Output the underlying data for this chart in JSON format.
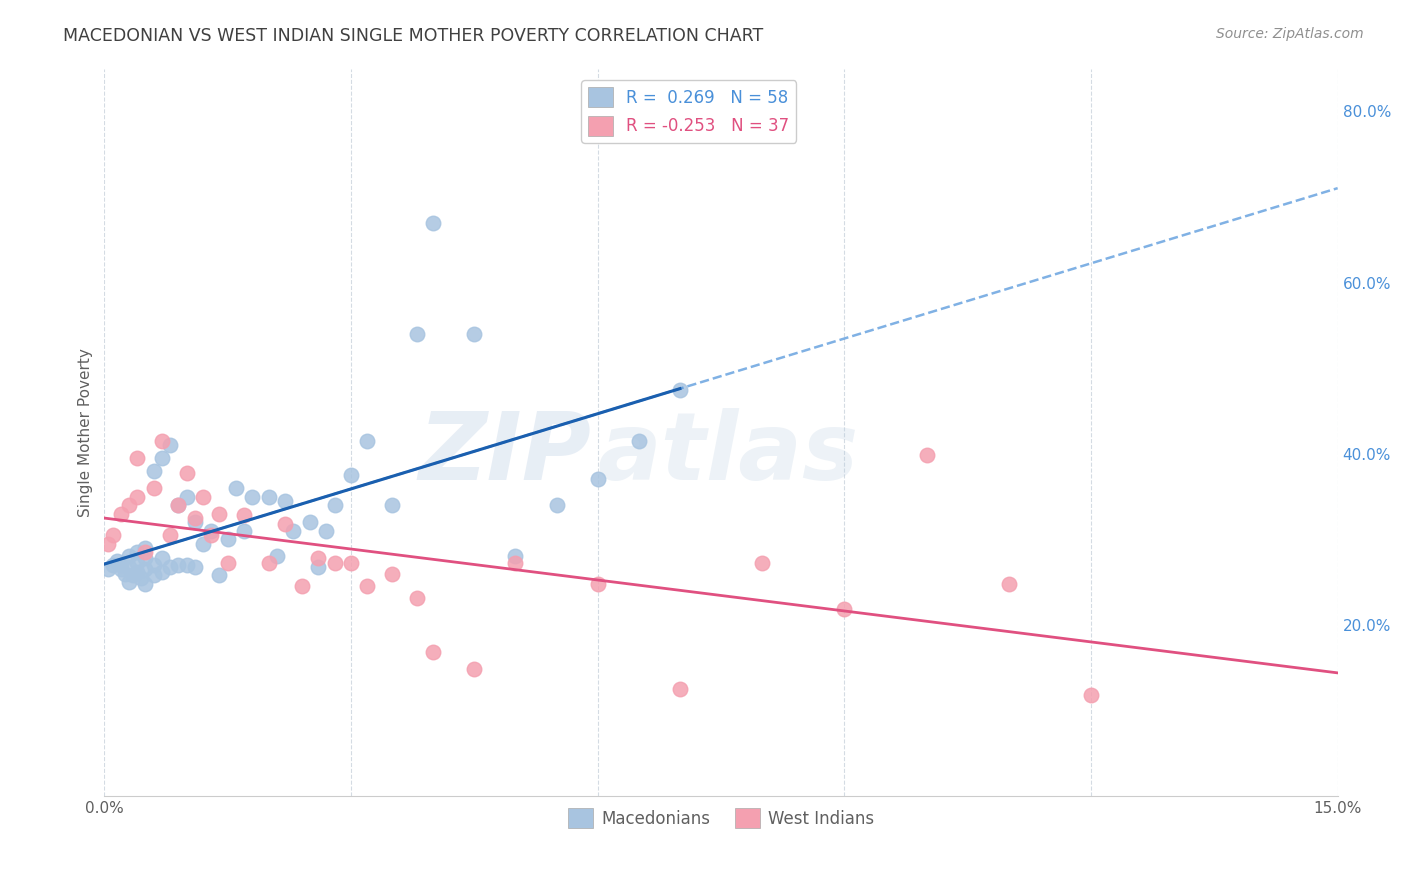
{
  "title": "MACEDONIAN VS WEST INDIAN SINGLE MOTHER POVERTY CORRELATION CHART",
  "source": "Source: ZipAtlas.com",
  "ylabel": "Single Mother Poverty",
  "xlim": [
    0.0,
    0.15
  ],
  "ylim": [
    0.0,
    0.85
  ],
  "x_ticks": [
    0.0,
    0.03,
    0.06,
    0.09,
    0.12,
    0.15
  ],
  "y_ticks_right": [
    0.2,
    0.4,
    0.6,
    0.8
  ],
  "y_tick_labels_right": [
    "20.0%",
    "40.0%",
    "60.0%",
    "80.0%"
  ],
  "macedonian_color": "#a8c4e0",
  "west_indian_color": "#f4a0b0",
  "macedonian_line_color": "#4a90d9",
  "west_indian_line_color": "#e05080",
  "legend_R_macedonian": "R =  0.269   N = 58",
  "legend_R_west_indian": "R = -0.253   N = 37",
  "watermark_zip": "ZIP",
  "watermark_atlas": "atlas",
  "macedonian_x": [
    0.0005,
    0.001,
    0.0015,
    0.002,
    0.002,
    0.0025,
    0.003,
    0.003,
    0.003,
    0.0035,
    0.004,
    0.004,
    0.004,
    0.0045,
    0.005,
    0.005,
    0.005,
    0.005,
    0.006,
    0.006,
    0.006,
    0.007,
    0.007,
    0.007,
    0.008,
    0.008,
    0.009,
    0.009,
    0.01,
    0.01,
    0.011,
    0.011,
    0.012,
    0.013,
    0.014,
    0.015,
    0.016,
    0.017,
    0.018,
    0.02,
    0.021,
    0.022,
    0.023,
    0.025,
    0.026,
    0.027,
    0.028,
    0.03,
    0.032,
    0.035,
    0.038,
    0.04,
    0.045,
    0.05,
    0.055,
    0.06,
    0.065,
    0.07
  ],
  "macedonian_y": [
    0.265,
    0.27,
    0.275,
    0.27,
    0.265,
    0.26,
    0.25,
    0.268,
    0.28,
    0.258,
    0.262,
    0.272,
    0.285,
    0.255,
    0.248,
    0.265,
    0.278,
    0.29,
    0.258,
    0.27,
    0.38,
    0.262,
    0.278,
    0.395,
    0.268,
    0.41,
    0.27,
    0.34,
    0.27,
    0.35,
    0.268,
    0.32,
    0.295,
    0.31,
    0.258,
    0.3,
    0.36,
    0.31,
    0.35,
    0.35,
    0.28,
    0.345,
    0.31,
    0.32,
    0.268,
    0.31,
    0.34,
    0.375,
    0.415,
    0.34,
    0.54,
    0.67,
    0.54,
    0.28,
    0.34,
    0.37,
    0.415,
    0.475
  ],
  "west_indian_x": [
    0.0005,
    0.001,
    0.002,
    0.003,
    0.004,
    0.004,
    0.005,
    0.006,
    0.007,
    0.008,
    0.009,
    0.01,
    0.011,
    0.012,
    0.013,
    0.014,
    0.015,
    0.017,
    0.02,
    0.022,
    0.024,
    0.026,
    0.028,
    0.03,
    0.032,
    0.035,
    0.038,
    0.04,
    0.045,
    0.05,
    0.06,
    0.07,
    0.08,
    0.09,
    0.1,
    0.11,
    0.12
  ],
  "west_indian_y": [
    0.295,
    0.305,
    0.33,
    0.34,
    0.35,
    0.395,
    0.285,
    0.36,
    0.415,
    0.305,
    0.34,
    0.378,
    0.325,
    0.35,
    0.305,
    0.33,
    0.272,
    0.328,
    0.272,
    0.318,
    0.245,
    0.278,
    0.272,
    0.272,
    0.245,
    0.26,
    0.232,
    0.168,
    0.148,
    0.272,
    0.248,
    0.125,
    0.272,
    0.218,
    0.398,
    0.248,
    0.118
  ],
  "background_color": "#ffffff",
  "grid_color": "#d0d8e0",
  "title_color": "#404040",
  "axis_label_color": "#606060"
}
